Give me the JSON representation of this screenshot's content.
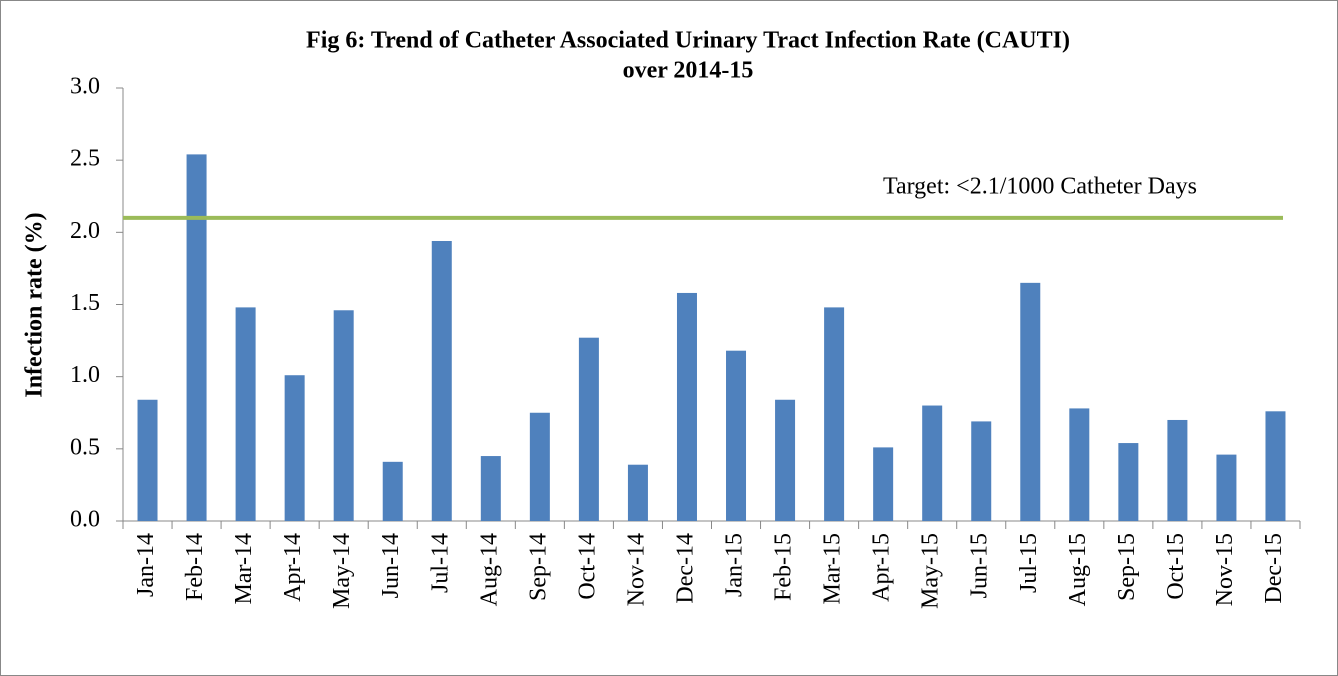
{
  "chart_data": {
    "type": "bar",
    "title": [
      "Fig 6: Trend of Catheter Associated Urinary Tract Infection Rate (CAUTI)",
      "over 2014-15"
    ],
    "y_label": "Infection rate (%)",
    "categories": [
      "Jan-14",
      "Feb-14",
      "Mar-14",
      "Apr-14",
      "May-14",
      "Jun-14",
      "Jul-14",
      "Aug-14",
      "Sep-14",
      "Oct-14",
      "Nov-14",
      "Dec-14",
      "Jan-15",
      "Feb-15",
      "Mar-15",
      "Apr-15",
      "May-15",
      "Jun-15",
      "Jul-15",
      "Aug-15",
      "Sep-15",
      "Oct-15",
      "Nov-15",
      "Dec-15"
    ],
    "values": [
      0.84,
      2.54,
      1.48,
      1.01,
      1.46,
      0.41,
      1.94,
      0.45,
      0.75,
      1.27,
      0.39,
      1.58,
      1.18,
      0.84,
      1.48,
      0.51,
      0.8,
      0.69,
      1.65,
      0.78,
      0.54,
      0.7,
      0.46,
      0.76
    ],
    "color": "#4f81bd",
    "ylim": [
      0,
      3
    ],
    "yticks": [
      {
        "value": 0,
        "label": "0.0"
      },
      0.5,
      {
        "value": 1,
        "label": "1.0"
      },
      1.5,
      {
        "value": 2,
        "label": "2.0"
      },
      2.5,
      {
        "value": 3,
        "label": "3.0"
      }
    ],
    "reference_lines": [
      {
        "value": 2.1,
        "label": "Target: <2.1/1000 Catheter Days",
        "color": "#9bbb59"
      }
    ]
  }
}
